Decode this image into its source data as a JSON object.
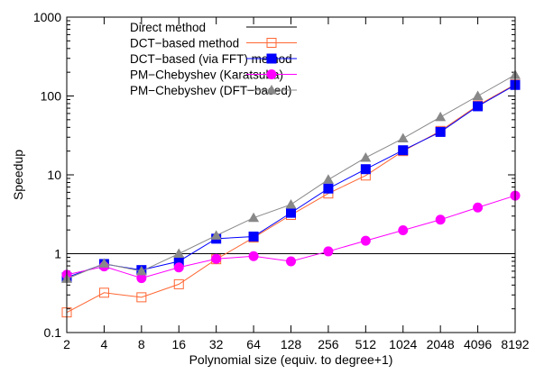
{
  "chart_data": {
    "type": "line",
    "xlabel": "Polynomial size (equiv. to degree+1)",
    "ylabel": "Speedup",
    "x_scale": "log2",
    "y_scale": "log10",
    "ylim": [
      0.1,
      1000
    ],
    "y_ticks": [
      0.1,
      1,
      10,
      100,
      1000
    ],
    "y_tick_labels": [
      "0.1",
      "1",
      "10",
      "100",
      "1000"
    ],
    "x": [
      2,
      4,
      8,
      16,
      32,
      64,
      128,
      256,
      512,
      1024,
      2048,
      4096,
      8192
    ],
    "x_tick_labels": [
      "2",
      "4",
      "8",
      "16",
      "32",
      "64",
      "128",
      "256",
      "512",
      "1024",
      "2048",
      "4096",
      "8192"
    ],
    "grid": false,
    "legend_position": "top-left",
    "series": [
      {
        "name": "Direct method",
        "color": "#000000",
        "marker": "none",
        "values": [
          1,
          1,
          1,
          1,
          1,
          1,
          1,
          1,
          1,
          1,
          1,
          1,
          1
        ]
      },
      {
        "name": "DCT−based method",
        "color": "#ff6633",
        "marker": "open-square",
        "values": [
          0.18,
          0.32,
          0.28,
          0.41,
          0.85,
          1.6,
          3.1,
          5.8,
          9.8,
          20,
          36,
          76,
          140
        ]
      },
      {
        "name": "DCT−based (via FFT) method",
        "color": "#0000ff",
        "marker": "filled-square",
        "values": [
          0.5,
          0.74,
          0.62,
          0.8,
          1.55,
          1.65,
          3.3,
          6.7,
          11.8,
          20.5,
          35,
          74,
          138
        ]
      },
      {
        "name": "PM−Chebyshev (Karatsuba)",
        "color": "#ff00ff",
        "marker": "filled-circle",
        "values": [
          0.54,
          0.69,
          0.49,
          0.67,
          0.86,
          0.93,
          0.8,
          1.07,
          1.46,
          1.98,
          2.7,
          3.85,
          5.45
        ]
      },
      {
        "name": "PM−Chebyshev (DFT−based)",
        "color": "#888888",
        "marker": "filled-triangle",
        "values": [
          0.48,
          0.75,
          0.6,
          1.0,
          1.7,
          2.85,
          4.2,
          8.7,
          16.5,
          29,
          54,
          100,
          185
        ]
      }
    ]
  }
}
